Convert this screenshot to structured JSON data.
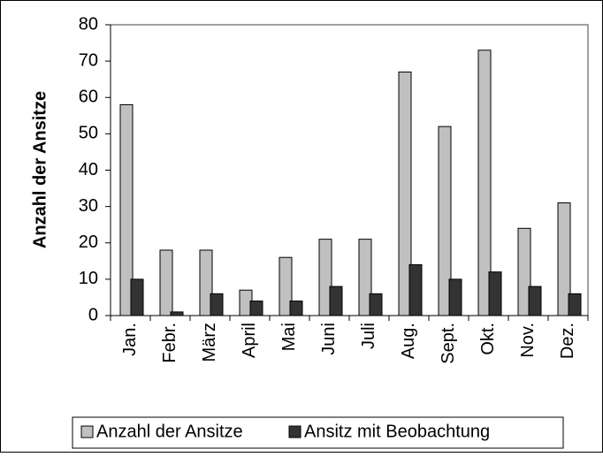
{
  "chart_data": {
    "type": "bar",
    "ylabel": "Anzahl der Ansitze",
    "categories": [
      "Jan.",
      "Febr.",
      "März",
      "April",
      "Mai",
      "Juni",
      "Juli",
      "Aug.",
      "Sept.",
      "Okt.",
      "Nov.",
      "Dez."
    ],
    "series": [
      {
        "name": "Anzahl der Ansitze",
        "color": "#c0c0c0",
        "values": [
          58,
          18,
          18,
          7,
          16,
          21,
          21,
          67,
          52,
          73,
          24,
          31
        ]
      },
      {
        "name": "Ansitz mit Beobachtung",
        "color": "#333333",
        "values": [
          10,
          1,
          6,
          4,
          4,
          8,
          6,
          14,
          10,
          12,
          8,
          6
        ]
      }
    ],
    "ylim": [
      0,
      80
    ],
    "yticks": [
      0,
      10,
      20,
      30,
      40,
      50,
      60,
      70,
      80
    ],
    "grid": false,
    "legend": "bottom"
  }
}
